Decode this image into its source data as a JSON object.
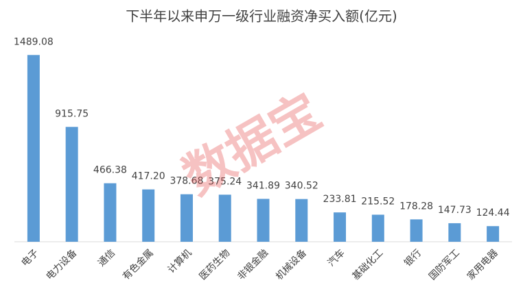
{
  "chart_data": {
    "type": "bar",
    "title": "下半年以来申万一级行业融资净买入额(亿元)",
    "watermark": "数据宝",
    "categories": [
      "电子",
      "电力设备",
      "通信",
      "有色金属",
      "计算机",
      "医药生物",
      "非银金融",
      "机械设备",
      "汽车",
      "基础化工",
      "银行",
      "国防军工",
      "家用电器"
    ],
    "values": [
      1489.08,
      915.75,
      466.38,
      417.2,
      378.68,
      375.24,
      341.89,
      340.52,
      233.81,
      215.52,
      178.28,
      147.73,
      124.44
    ],
    "value_labels": [
      "1489.08",
      "915.75",
      "466.38",
      "417.20",
      "378.68",
      "375.24",
      "341.89",
      "340.52",
      "233.81",
      "215.52",
      "178.28",
      "147.73",
      "124.44"
    ],
    "color": "#5b9bd5",
    "ylim": [
      0,
      1600
    ]
  }
}
